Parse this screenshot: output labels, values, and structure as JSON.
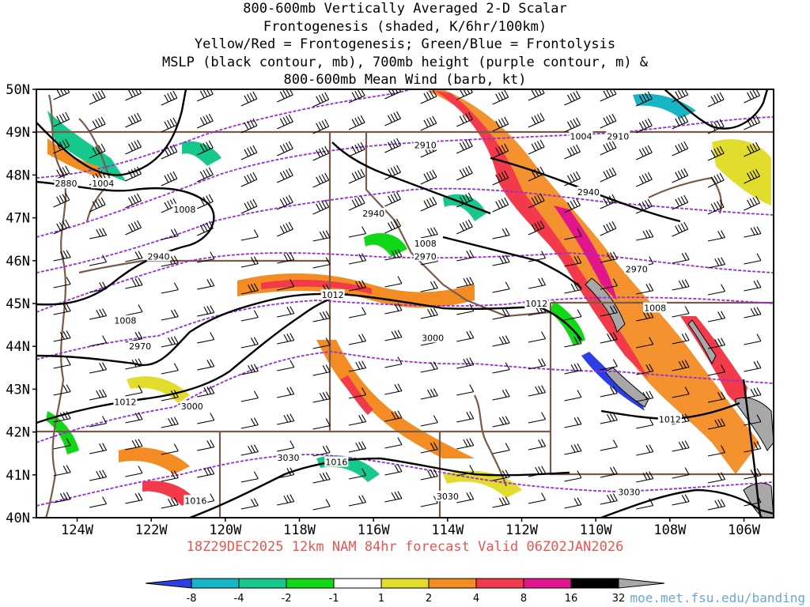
{
  "title": {
    "lines": [
      "800-600mb Vertically Averaged 2-D Scalar",
      "Frontogenesis (shaded, K/6hr/100km)",
      "Yellow/Red = Frontogenesis;  Green/Blue = Frontolysis",
      "MSLP (black contour, mb), 700mb height (purple contour, m) &",
      "800-600mb Mean Wind (barb, kt)"
    ]
  },
  "map": {
    "lat_range": [
      40,
      50
    ],
    "lon_range": [
      -125.1,
      -105.2
    ],
    "lat_labels": [
      {
        "lat": 50,
        "text": "50N"
      },
      {
        "lat": 49,
        "text": "49N"
      },
      {
        "lat": 48,
        "text": "48N"
      },
      {
        "lat": 47,
        "text": "47N"
      },
      {
        "lat": 46,
        "text": "46N"
      },
      {
        "lat": 45,
        "text": "45N"
      },
      {
        "lat": 44,
        "text": "44N"
      },
      {
        "lat": 43,
        "text": "43N"
      },
      {
        "lat": 42,
        "text": "42N"
      },
      {
        "lat": 41,
        "text": "41N"
      },
      {
        "lat": 40,
        "text": "40N"
      }
    ],
    "lon_labels": [
      {
        "lon": -124,
        "text": "124W"
      },
      {
        "lon": -122,
        "text": "122W"
      },
      {
        "lon": -120,
        "text": "120W"
      },
      {
        "lon": -118,
        "text": "118W"
      },
      {
        "lon": -116,
        "text": "116W"
      },
      {
        "lon": -114,
        "text": "114W"
      },
      {
        "lon": -112,
        "text": "112W"
      },
      {
        "lon": -110,
        "text": "110W"
      },
      {
        "lon": -108,
        "text": "108W"
      },
      {
        "lon": -106,
        "text": "106W"
      }
    ],
    "mslp_labels": [
      {
        "lat": 47.8,
        "lon": -123.3,
        "text": "1004"
      },
      {
        "lat": 47.2,
        "lon": -121.1,
        "text": "1008"
      },
      {
        "lat": 44.6,
        "lon": -122.7,
        "text": "1008"
      },
      {
        "lat": 42.7,
        "lon": -122.7,
        "text": "1012"
      },
      {
        "lat": 45.2,
        "lon": -117.1,
        "text": "1012"
      },
      {
        "lat": 46.4,
        "lon": -114.6,
        "text": "1008"
      },
      {
        "lat": 45.0,
        "lon": -111.6,
        "text": "1012"
      },
      {
        "lat": 44.9,
        "lon": -108.4,
        "text": "1008"
      },
      {
        "lat": 42.3,
        "lon": -108.0,
        "text": "1012"
      },
      {
        "lat": 41.3,
        "lon": -117.0,
        "text": "1016"
      },
      {
        "lat": 40.4,
        "lon": -120.8,
        "text": "1016"
      },
      {
        "lat": 48.9,
        "lon": -110.4,
        "text": "1004"
      }
    ],
    "height_labels": [
      {
        "lat": 47.8,
        "lon": -124.3,
        "text": "2880"
      },
      {
        "lat": 48.7,
        "lon": -114.6,
        "text": "2910"
      },
      {
        "lat": 48.9,
        "lon": -109.4,
        "text": "2910"
      },
      {
        "lat": 47.1,
        "lon": -116.0,
        "text": "2940"
      },
      {
        "lat": 47.6,
        "lon": -110.2,
        "text": "2940"
      },
      {
        "lat": 46.1,
        "lon": -121.8,
        "text": "2940"
      },
      {
        "lat": 46.1,
        "lon": -114.6,
        "text": "2970"
      },
      {
        "lat": 45.8,
        "lon": -108.9,
        "text": "2970"
      },
      {
        "lat": 44.0,
        "lon": -122.3,
        "text": "2970"
      },
      {
        "lat": 44.2,
        "lon": -114.4,
        "text": "3000"
      },
      {
        "lat": 42.6,
        "lon": -120.9,
        "text": "3000"
      },
      {
        "lat": 41.4,
        "lon": -118.3,
        "text": "3030"
      },
      {
        "lat": 40.5,
        "lon": -114.0,
        "text": "3030"
      },
      {
        "lat": 40.6,
        "lon": -109.1,
        "text": "3030"
      }
    ]
  },
  "footer": "18Z29DEC2025 12km NAM 84hr forecast Valid 06Z02JAN2026",
  "colorbar": {
    "colors": [
      "#2c3fe6",
      "#16b6c6",
      "#16c88c",
      "#10d816",
      "#ffffff",
      "#e2dc2c",
      "#f28c23",
      "#f23a4a",
      "#e0168a",
      "#000000",
      "#a8a8a8"
    ],
    "labels": [
      "-8",
      "-4",
      "-2",
      "-1",
      "1",
      "2",
      "4",
      "8",
      "16",
      "32"
    ]
  },
  "credit": "moe.met.fsu.edu/banding"
}
